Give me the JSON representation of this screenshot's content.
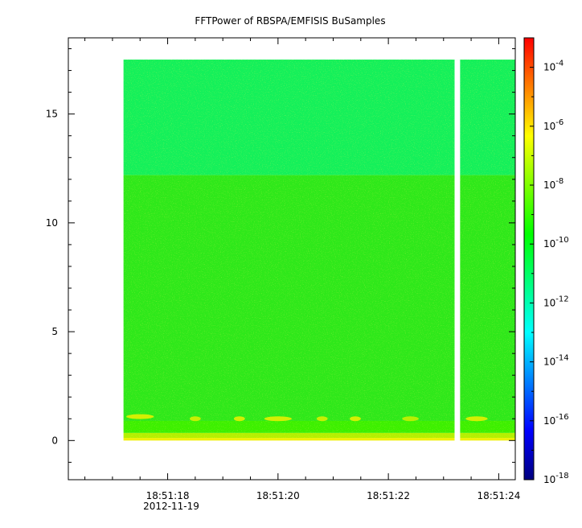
{
  "chart_data": {
    "type": "heatmap",
    "title": "FFTPower of RBSPA/EMFISIS  BuSamples",
    "xlabel": "",
    "ylabel": "",
    "date_label": "2012-11-19",
    "x_range": [
      "18:51:16.2",
      "18:51:24.3"
    ],
    "x_ticks": [
      "18:51:18",
      "18:51:20",
      "18:51:22",
      "18:51:24"
    ],
    "ylim": [
      -1.8,
      18.5
    ],
    "y_ticks": [
      0,
      5,
      10,
      15
    ],
    "data_extent": {
      "x_start": "18:51:17.2",
      "x_end": "18:51:24.3",
      "y_min": 0.0,
      "y_max": 17.5
    },
    "data_gap": {
      "start": "18:51:23.2",
      "end": "18:51:23.3"
    },
    "colorbar": {
      "scale": "log",
      "range": [
        1e-18,
        0.001
      ],
      "tick_exponents": [
        -18,
        -16,
        -14,
        -12,
        -10,
        -8,
        -6,
        -4
      ],
      "colormap": [
        "#00007f",
        "#0000ff",
        "#007fff",
        "#00ffff",
        "#00ff7f",
        "#00ff00",
        "#7fff00",
        "#ffff00",
        "#ff7f00",
        "#ff0000"
      ]
    },
    "bands": [
      {
        "y_from": 0.0,
        "y_to": 0.12,
        "power": 1e-08,
        "color": "#f0f000"
      },
      {
        "y_from": 0.12,
        "y_to": 0.35,
        "power": 3e-09,
        "color": "#b4f000"
      },
      {
        "y_from": 0.35,
        "y_to": 0.9,
        "power": 3e-10,
        "color": "#3cf000"
      },
      {
        "y_from": 0.9,
        "y_to": 12.2,
        "power": 1e-10,
        "color": "#2ee81a"
      },
      {
        "y_from": 12.2,
        "y_to": 17.5,
        "power": 3e-12,
        "color": "#14f05a"
      }
    ],
    "bursts": [
      {
        "t": "18:51:17.5",
        "f": 1.1,
        "width_s": 0.5,
        "color": "#e6f000"
      },
      {
        "t": "18:51:18.5",
        "f": 1.0,
        "width_s": 0.2,
        "color": "#d8f000"
      },
      {
        "t": "18:51:19.3",
        "f": 1.0,
        "width_s": 0.2,
        "color": "#e6f000"
      },
      {
        "t": "18:51:20.0",
        "f": 1.0,
        "width_s": 0.5,
        "color": "#e6f000"
      },
      {
        "t": "18:51:20.8",
        "f": 1.0,
        "width_s": 0.2,
        "color": "#d8f000"
      },
      {
        "t": "18:51:21.4",
        "f": 1.0,
        "width_s": 0.2,
        "color": "#e6f000"
      },
      {
        "t": "18:51:22.4",
        "f": 1.0,
        "width_s": 0.3,
        "color": "#c8f000"
      },
      {
        "t": "18:51:23.6",
        "f": 1.0,
        "width_s": 0.4,
        "color": "#e6f000"
      }
    ]
  }
}
